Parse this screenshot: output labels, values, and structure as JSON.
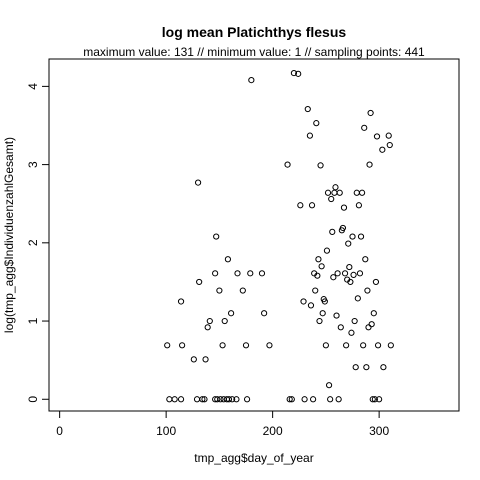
{
  "chart_data": {
    "type": "scatter",
    "title": "log mean Platichthys flesus",
    "subtitle": "maximum value: 131  //  minimum value: 1  // sampling points: 441",
    "xlabel": "tmp_agg$day_of_year",
    "ylabel": "log(tmp_agg$IndividuenzahlGesamt)",
    "xlim": [
      -10,
      375
    ],
    "ylim": [
      -0.15,
      4.35
    ],
    "x_ticks": [
      0,
      100,
      200,
      300
    ],
    "y_ticks": [
      0,
      1,
      2,
      3,
      4
    ],
    "grid": false,
    "marker": "open-circle",
    "points": [
      {
        "x": 101,
        "y": 0.69
      },
      {
        "x": 103,
        "y": 0.0
      },
      {
        "x": 108,
        "y": 0.0
      },
      {
        "x": 114,
        "y": 0.0
      },
      {
        "x": 114,
        "y": 1.25
      },
      {
        "x": 115,
        "y": 0.69
      },
      {
        "x": 126,
        "y": 0.51
      },
      {
        "x": 129,
        "y": 0.0
      },
      {
        "x": 130,
        "y": 2.77
      },
      {
        "x": 131,
        "y": 1.5
      },
      {
        "x": 134,
        "y": 0.0
      },
      {
        "x": 136,
        "y": 0.0
      },
      {
        "x": 137,
        "y": 0.51
      },
      {
        "x": 139,
        "y": 0.92
      },
      {
        "x": 141,
        "y": 1.0
      },
      {
        "x": 146,
        "y": 0.0
      },
      {
        "x": 146,
        "y": 1.61
      },
      {
        "x": 147,
        "y": 2.08
      },
      {
        "x": 148,
        "y": 0.0
      },
      {
        "x": 150,
        "y": 1.39
      },
      {
        "x": 151,
        "y": 0.0
      },
      {
        "x": 153,
        "y": 0.69
      },
      {
        "x": 154,
        "y": 0.0
      },
      {
        "x": 155,
        "y": 1.0
      },
      {
        "x": 157,
        "y": 0.0
      },
      {
        "x": 158,
        "y": 1.79
      },
      {
        "x": 159,
        "y": 0.0
      },
      {
        "x": 161,
        "y": 1.1
      },
      {
        "x": 162,
        "y": 0.0
      },
      {
        "x": 166,
        "y": 0.0
      },
      {
        "x": 167,
        "y": 1.61
      },
      {
        "x": 172,
        "y": 1.39
      },
      {
        "x": 175,
        "y": 0.69
      },
      {
        "x": 176,
        "y": 0.0
      },
      {
        "x": 179,
        "y": 1.61
      },
      {
        "x": 180,
        "y": 4.08
      },
      {
        "x": 190,
        "y": 1.61
      },
      {
        "x": 192,
        "y": 1.1
      },
      {
        "x": 197,
        "y": 0.69
      },
      {
        "x": 214,
        "y": 3.0
      },
      {
        "x": 216,
        "y": 0.0
      },
      {
        "x": 218,
        "y": 0.0
      },
      {
        "x": 220,
        "y": 4.17
      },
      {
        "x": 224,
        "y": 4.16
      },
      {
        "x": 226,
        "y": 2.48
      },
      {
        "x": 229,
        "y": 1.25
      },
      {
        "x": 230,
        "y": 0.0
      },
      {
        "x": 233,
        "y": 3.71
      },
      {
        "x": 235,
        "y": 3.37
      },
      {
        "x": 236,
        "y": 1.2
      },
      {
        "x": 237,
        "y": 2.48
      },
      {
        "x": 238,
        "y": 0.0
      },
      {
        "x": 239,
        "y": 1.61
      },
      {
        "x": 240,
        "y": 1.39
      },
      {
        "x": 241,
        "y": 3.53
      },
      {
        "x": 242,
        "y": 1.58
      },
      {
        "x": 243,
        "y": 1.79
      },
      {
        "x": 244,
        "y": 1.0
      },
      {
        "x": 245,
        "y": 2.99
      },
      {
        "x": 246,
        "y": 1.7
      },
      {
        "x": 247,
        "y": 1.1
      },
      {
        "x": 248,
        "y": 1.28
      },
      {
        "x": 249,
        "y": 1.25
      },
      {
        "x": 250,
        "y": 0.69
      },
      {
        "x": 251,
        "y": 1.9
      },
      {
        "x": 252,
        "y": 2.64
      },
      {
        "x": 253,
        "y": 0.18
      },
      {
        "x": 254,
        "y": 0.0
      },
      {
        "x": 255,
        "y": 2.56
      },
      {
        "x": 256,
        "y": 2.14
      },
      {
        "x": 257,
        "y": 1.56
      },
      {
        "x": 258,
        "y": 2.64
      },
      {
        "x": 259,
        "y": 2.71
      },
      {
        "x": 260,
        "y": 1.07
      },
      {
        "x": 261,
        "y": 1.61
      },
      {
        "x": 262,
        "y": 0.0
      },
      {
        "x": 263,
        "y": 2.64
      },
      {
        "x": 264,
        "y": 0.92
      },
      {
        "x": 265,
        "y": 2.16
      },
      {
        "x": 266,
        "y": 2.19
      },
      {
        "x": 267,
        "y": 2.45
      },
      {
        "x": 268,
        "y": 1.61
      },
      {
        "x": 269,
        "y": 0.69
      },
      {
        "x": 270,
        "y": 1.53
      },
      {
        "x": 271,
        "y": 1.99
      },
      {
        "x": 272,
        "y": 1.69
      },
      {
        "x": 273,
        "y": 1.5
      },
      {
        "x": 274,
        "y": 0.85
      },
      {
        "x": 275,
        "y": 2.08
      },
      {
        "x": 276,
        "y": 1.59
      },
      {
        "x": 277,
        "y": 1.0
      },
      {
        "x": 278,
        "y": 0.41
      },
      {
        "x": 279,
        "y": 2.64
      },
      {
        "x": 280,
        "y": 1.29
      },
      {
        "x": 281,
        "y": 2.48
      },
      {
        "x": 282,
        "y": 1.61
      },
      {
        "x": 283,
        "y": 2.08
      },
      {
        "x": 284,
        "y": 2.64
      },
      {
        "x": 285,
        "y": 0.69
      },
      {
        "x": 286,
        "y": 3.47
      },
      {
        "x": 287,
        "y": 1.79
      },
      {
        "x": 288,
        "y": 0.41
      },
      {
        "x": 289,
        "y": 1.39
      },
      {
        "x": 290,
        "y": 0.92
      },
      {
        "x": 291,
        "y": 3.0
      },
      {
        "x": 292,
        "y": 3.66
      },
      {
        "x": 293,
        "y": 0.96
      },
      {
        "x": 294,
        "y": 0.0
      },
      {
        "x": 295,
        "y": 1.1
      },
      {
        "x": 296,
        "y": 0.0
      },
      {
        "x": 297,
        "y": 1.5
      },
      {
        "x": 298,
        "y": 3.36
      },
      {
        "x": 299,
        "y": 0.69
      },
      {
        "x": 300,
        "y": 0.0
      },
      {
        "x": 303,
        "y": 3.19
      },
      {
        "x": 304,
        "y": 0.41
      },
      {
        "x": 309,
        "y": 3.37
      },
      {
        "x": 310,
        "y": 3.25
      },
      {
        "x": 311,
        "y": 0.69
      }
    ]
  }
}
